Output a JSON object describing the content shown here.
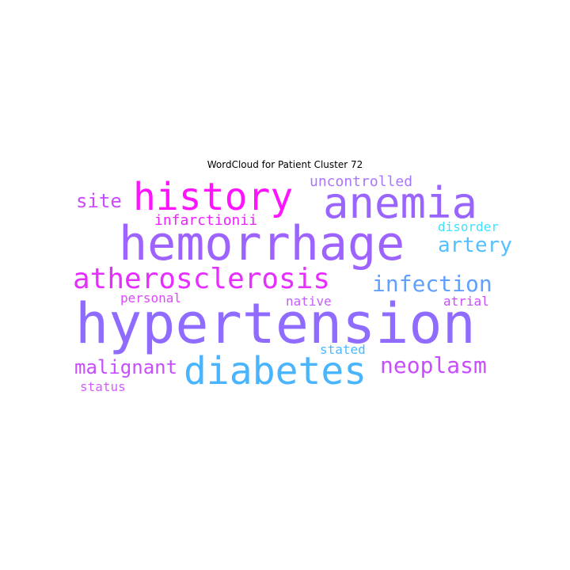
{
  "chart_data": {
    "type": "wordcloud",
    "title": "WordCloud for Patient Cluster 72",
    "words": [
      {
        "text": "hypertension",
        "weight": 1.0,
        "color": "#8f6bff"
      },
      {
        "text": "hemorrhage",
        "weight": 0.8,
        "color": "#9e62ff"
      },
      {
        "text": "anemia",
        "weight": 0.72,
        "color": "#9a64ff"
      },
      {
        "text": "history",
        "weight": 0.66,
        "color": "#ff14ff"
      },
      {
        "text": "diabetes",
        "weight": 0.66,
        "color": "#4ab5ff"
      },
      {
        "text": "atherosclerosis",
        "weight": 0.5,
        "color": "#e52eff"
      },
      {
        "text": "infection",
        "weight": 0.4,
        "color": "#62a0ff"
      },
      {
        "text": "neoplasm",
        "weight": 0.4,
        "color": "#c84dff"
      },
      {
        "text": "artery",
        "weight": 0.33,
        "color": "#55bfff"
      },
      {
        "text": "malignant",
        "weight": 0.3,
        "color": "#c84dff"
      },
      {
        "text": "site",
        "weight": 0.3,
        "color": "#cb4aff"
      },
      {
        "text": "infarctionii",
        "weight": 0.25,
        "color": "#ef20ff"
      },
      {
        "text": "uncontrolled",
        "weight": 0.25,
        "color": "#aa75ff"
      },
      {
        "text": "disorder",
        "weight": 0.24,
        "color": "#40e0ff"
      },
      {
        "text": "personal",
        "weight": 0.24,
        "color": "#e046ff"
      },
      {
        "text": "native",
        "weight": 0.24,
        "color": "#c45dff"
      },
      {
        "text": "atrial",
        "weight": 0.24,
        "color": "#c84dff"
      },
      {
        "text": "stated",
        "weight": 0.22,
        "color": "#4ab8ff"
      },
      {
        "text": "status",
        "weight": 0.22,
        "color": "#d65cff"
      }
    ]
  }
}
